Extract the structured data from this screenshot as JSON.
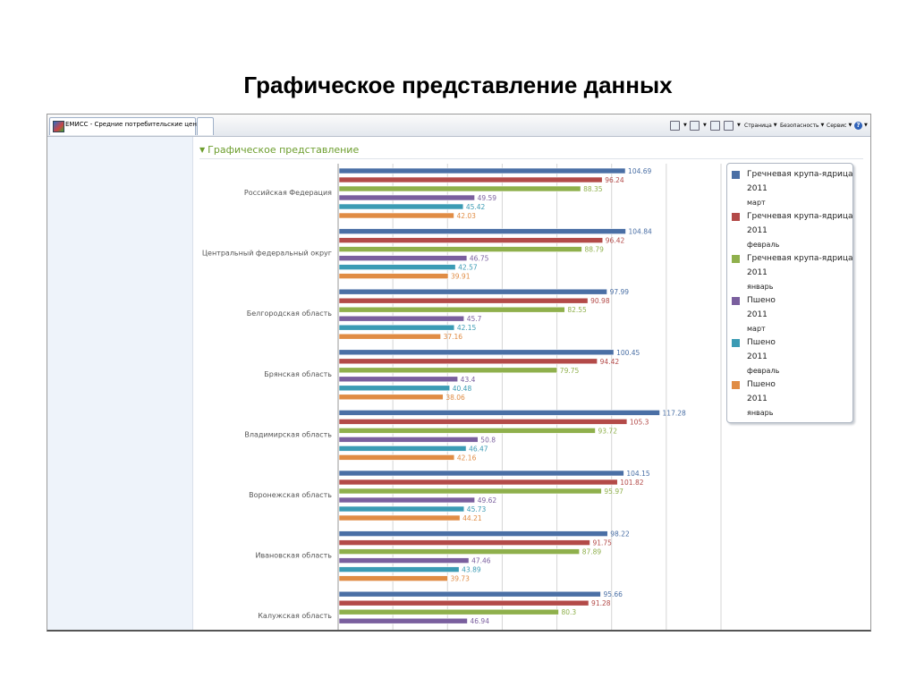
{
  "slide": {
    "title": "Графическое представление данных"
  },
  "browser": {
    "tab_label": "ЕМИСС - Средние потребительские цены",
    "commands": {
      "page": "Страница",
      "safety": "Безопасность",
      "service": "Сервис"
    }
  },
  "section": {
    "header": "Графическое представление"
  },
  "colors": {
    "buckwheat_march": "#4a6fa5",
    "buckwheat_february": "#b34a48",
    "buckwheat_january": "#8fb04c",
    "millet_march": "#7a5f9e",
    "millet_february": "#3b9bb4",
    "millet_january": "#e08c44"
  },
  "chart_data": {
    "type": "bar",
    "orientation": "horizontal",
    "categories": [
      "Российская Федерация",
      "Центральный федеральный округ",
      "Белгородская область",
      "Брянская область",
      "Владимирская область",
      "Воронежская область",
      "Ивановская область",
      "Калужская область"
    ],
    "series": [
      {
        "name": "Гречневая крупа-ядрица",
        "year": "2011",
        "month": "март",
        "color": "#4a6fa5",
        "values": [
          104.69,
          104.84,
          97.99,
          100.45,
          117.28,
          104.15,
          98.22,
          95.66
        ],
        "labels": [
          "104.69",
          "104.84",
          "97.99",
          "100.45",
          "117.28",
          "104.15",
          "98.22",
          "95.66"
        ]
      },
      {
        "name": "Гречневая крупа-ядрица",
        "year": "2011",
        "month": "февраль",
        "color": "#b34a48",
        "values": [
          96.24,
          96.42,
          90.98,
          94.42,
          105.3,
          101.82,
          91.75,
          91.28
        ],
        "labels": [
          "96.24",
          "96.42",
          "90.98",
          "94.42",
          "105.3",
          "101.82",
          "91.75",
          "91.28"
        ]
      },
      {
        "name": "Гречневая крупа-ядрица",
        "year": "2011",
        "month": "январь",
        "color": "#8fb04c",
        "values": [
          88.35,
          88.79,
          82.55,
          79.75,
          93.72,
          95.97,
          87.89,
          80.3
        ],
        "labels": [
          "88.35",
          "88.79",
          "82.55",
          "79.75",
          "93.72",
          "95.97",
          "87.89",
          "80.3"
        ]
      },
      {
        "name": "Пшено",
        "year": "2011",
        "month": "март",
        "color": "#7a5f9e",
        "values": [
          49.59,
          46.75,
          45.7,
          43.4,
          50.8,
          49.62,
          47.46,
          46.94
        ],
        "labels": [
          "49.59",
          "46.75",
          "45.7",
          "43.4",
          "50.8",
          "49.62",
          "47.46",
          "46.94"
        ]
      },
      {
        "name": "Пшено",
        "year": "2011",
        "month": "февраль",
        "color": "#3b9bb4",
        "values": [
          45.42,
          42.57,
          42.15,
          40.48,
          46.47,
          45.73,
          43.89,
          null
        ],
        "labels": [
          "45.42",
          "42.57",
          "42.15",
          "40.48",
          "46.47",
          "45.73",
          "43.89",
          null
        ]
      },
      {
        "name": "Пшено",
        "year": "2011",
        "month": "январь",
        "color": "#e08c44",
        "values": [
          42.03,
          39.91,
          37.16,
          38.06,
          42.16,
          44.21,
          39.73,
          null
        ],
        "labels": [
          "42.03",
          "39.91",
          "37.16",
          "38.06",
          "42.16",
          "44.21",
          "39.73",
          null
        ]
      }
    ],
    "xlim": [
      0,
      140
    ],
    "gridlines": true,
    "legend_position": "right"
  }
}
